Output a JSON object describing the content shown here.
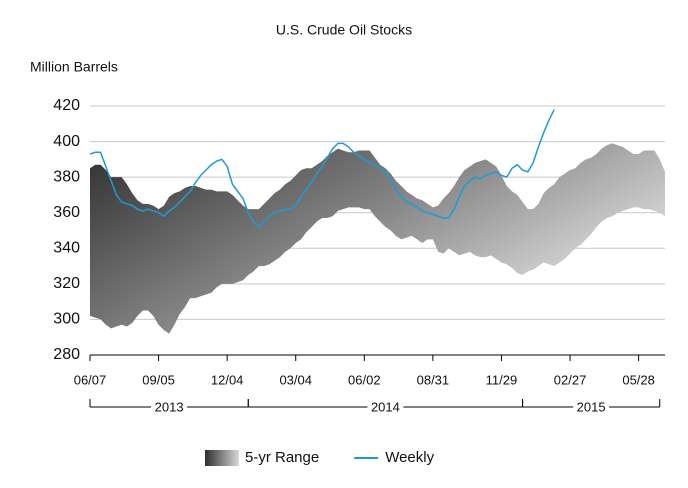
{
  "chart_data": {
    "type": "range-line",
    "title": "U.S. Crude Oil Stocks",
    "y_label": "Million Barrels",
    "categories": [
      "06/07",
      null,
      null,
      null,
      null,
      null,
      null,
      null,
      null,
      null,
      null,
      null,
      null,
      "09/05",
      null,
      null,
      null,
      null,
      null,
      null,
      null,
      null,
      null,
      null,
      null,
      null,
      "12/04",
      null,
      null,
      null,
      null,
      null,
      null,
      null,
      null,
      null,
      null,
      null,
      null,
      "03/04",
      null,
      null,
      null,
      null,
      null,
      null,
      null,
      null,
      null,
      null,
      null,
      null,
      "06/02",
      null,
      null,
      null,
      null,
      null,
      null,
      null,
      null,
      null,
      null,
      null,
      null,
      "08/31",
      null,
      null,
      null,
      null,
      null,
      null,
      null,
      null,
      null,
      null,
      null,
      null,
      "11/29",
      null,
      null,
      null,
      null,
      null,
      null,
      null,
      null,
      null,
      null,
      null,
      null,
      "02/27",
      null,
      null,
      null,
      null,
      null,
      null,
      null,
      null,
      null,
      null,
      null,
      null,
      "05/28",
      null,
      null,
      null,
      null,
      null
    ],
    "year_groups": [
      {
        "label": "2013",
        "start": 0,
        "end": 30
      },
      {
        "label": "2014",
        "start": 30,
        "end": 82
      },
      {
        "label": "2015",
        "start": 82,
        "end": 108
      }
    ],
    "series": [
      {
        "name": "5-yr Range",
        "color": "#555555",
        "high": [
          385,
          387,
          387,
          384,
          380,
          380,
          380,
          376,
          371,
          367,
          365,
          365,
          364,
          362,
          364,
          369,
          371,
          372,
          374,
          375,
          375,
          374,
          373,
          373,
          372,
          372,
          372,
          370,
          367,
          364,
          362,
          362,
          362,
          365,
          368,
          371,
          373,
          376,
          378,
          381,
          384,
          385,
          385,
          387,
          389,
          392,
          394,
          396,
          395,
          394,
          394,
          395,
          395,
          395,
          391,
          387,
          385,
          382,
          378,
          375,
          372,
          370,
          368,
          367,
          365,
          363,
          364,
          368,
          371,
          375,
          380,
          384,
          386,
          388,
          389,
          390,
          388,
          386,
          381,
          375,
          372,
          370,
          366,
          362,
          362,
          365,
          371,
          374,
          376,
          380,
          382,
          384,
          385,
          388,
          390,
          391,
          393,
          396,
          398,
          399,
          398,
          397,
          395,
          393,
          393,
          395,
          395,
          395,
          390,
          383
        ],
        "low": [
          302,
          301,
          300,
          297,
          295,
          296,
          297,
          296,
          298,
          302,
          305,
          305,
          302,
          297,
          294,
          292,
          297,
          303,
          307,
          312,
          312,
          313,
          314,
          315,
          318,
          320,
          320,
          320,
          321,
          322,
          325,
          327,
          330,
          330,
          331,
          333,
          335,
          338,
          340,
          343,
          345,
          349,
          352,
          355,
          357,
          357,
          358,
          361,
          362,
          363,
          363,
          363,
          362,
          362,
          358,
          355,
          352,
          350,
          347,
          345,
          346,
          347,
          345,
          343,
          345,
          345,
          338,
          337,
          340,
          338,
          336,
          337,
          338,
          336,
          335,
          335,
          336,
          334,
          332,
          331,
          329,
          326,
          325,
          327,
          328,
          330,
          332,
          331,
          330,
          332,
          334,
          337,
          340,
          342,
          345,
          348,
          352,
          355,
          357,
          358,
          360,
          361,
          362,
          363,
          363,
          362,
          362,
          361,
          360,
          358
        ]
      },
      {
        "name": "Weekly",
        "color": "#1e9bd7",
        "values": [
          393,
          394,
          394,
          386,
          378,
          370,
          366,
          365,
          364,
          362,
          361,
          362,
          361,
          360,
          358,
          361,
          363,
          366,
          369,
          372,
          377,
          381,
          384,
          387,
          389,
          390,
          386,
          376,
          372,
          368,
          360,
          355,
          352,
          355,
          358,
          360,
          361,
          362,
          362,
          364,
          369,
          373,
          377,
          382,
          386,
          391,
          396,
          399,
          399,
          397,
          394,
          392,
          390,
          388,
          387,
          385,
          383,
          379,
          373,
          369,
          366,
          365,
          363,
          361,
          360,
          359,
          358,
          357,
          357,
          362,
          369,
          375,
          378,
          380,
          379,
          381,
          382,
          383,
          381,
          380,
          385,
          387,
          384,
          383,
          388,
          397,
          405,
          412,
          418,
          null,
          null,
          null,
          null,
          null,
          null,
          null,
          null,
          null,
          null,
          null,
          null,
          null,
          null,
          null,
          null,
          null,
          null,
          null,
          null,
          null
        ]
      }
    ],
    "ylim": [
      280,
      420
    ],
    "yticks": [
      280,
      300,
      320,
      340,
      360,
      380,
      400,
      420
    ],
    "grid": true,
    "legend": "bottom"
  }
}
